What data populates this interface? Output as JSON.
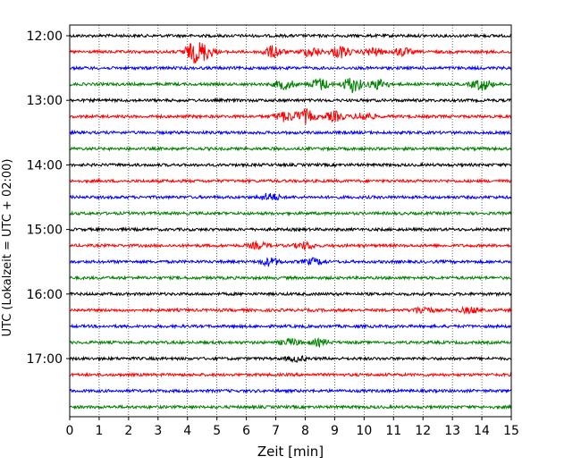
{
  "chart_data": {
    "type": "line",
    "title": "",
    "xlabel": "Zeit  [min]",
    "ylabel": "UTC (Lokalzeit = UTC + 02:00)",
    "xlim": [
      0,
      15
    ],
    "x_ticks": [
      "0",
      "1",
      "2",
      "3",
      "4",
      "5",
      "6",
      "7",
      "8",
      "9",
      "10",
      "11",
      "12",
      "13",
      "14",
      "15"
    ],
    "y_ticks": [
      "12:00",
      "13:00",
      "14:00",
      "15:00",
      "16:00",
      "17:00"
    ],
    "grid": "vertical-dotted",
    "trace_colors": [
      "#000000",
      "#ff0000",
      "#0000ff",
      "#008000"
    ],
    "traces": [
      {
        "time": "12:00",
        "color": "#000000",
        "events": []
      },
      {
        "time": "12:15",
        "color": "#ff0000",
        "events": [
          [
            4.2,
            0.9
          ],
          [
            4.6,
            0.7
          ],
          [
            6.9,
            0.6
          ],
          [
            8.2,
            0.5
          ],
          [
            9.2,
            0.6
          ],
          [
            10.3,
            0.4
          ],
          [
            11.3,
            0.4
          ]
        ]
      },
      {
        "time": "12:30",
        "color": "#0000ff",
        "events": []
      },
      {
        "time": "12:45",
        "color": "#008000",
        "events": [
          [
            7.3,
            0.5
          ],
          [
            8.5,
            0.6
          ],
          [
            9.6,
            0.8
          ],
          [
            10.5,
            0.5
          ],
          [
            14.0,
            0.6
          ]
        ]
      },
      {
        "time": "13:00",
        "color": "#000000",
        "events": []
      },
      {
        "time": "13:15",
        "color": "#ff0000",
        "events": [
          [
            7.3,
            0.5
          ],
          [
            8.0,
            0.7
          ],
          [
            9.0,
            0.5
          ],
          [
            10.0,
            0.4
          ]
        ]
      },
      {
        "time": "13:30",
        "color": "#0000ff",
        "events": []
      },
      {
        "time": "13:45",
        "color": "#008000",
        "events": []
      },
      {
        "time": "14:00",
        "color": "#000000",
        "events": []
      },
      {
        "time": "14:15",
        "color": "#ff0000",
        "events": []
      },
      {
        "time": "14:30",
        "color": "#0000ff",
        "events": [
          [
            6.8,
            0.4
          ]
        ]
      },
      {
        "time": "14:45",
        "color": "#008000",
        "events": []
      },
      {
        "time": "15:00",
        "color": "#000000",
        "events": []
      },
      {
        "time": "15:15",
        "color": "#ff0000",
        "events": [
          [
            6.4,
            0.3
          ],
          [
            8.0,
            0.35
          ]
        ]
      },
      {
        "time": "15:30",
        "color": "#0000ff",
        "events": [
          [
            6.8,
            0.4
          ],
          [
            8.3,
            0.3
          ]
        ]
      },
      {
        "time": "15:45",
        "color": "#008000",
        "events": []
      },
      {
        "time": "16:00",
        "color": "#000000",
        "events": []
      },
      {
        "time": "16:15",
        "color": "#ff0000",
        "events": [
          [
            12.0,
            0.35
          ],
          [
            13.6,
            0.3
          ]
        ]
      },
      {
        "time": "16:30",
        "color": "#0000ff",
        "events": []
      },
      {
        "time": "16:45",
        "color": "#008000",
        "events": [
          [
            7.5,
            0.35
          ],
          [
            8.5,
            0.3
          ]
        ]
      },
      {
        "time": "17:00",
        "color": "#000000",
        "events": [
          [
            7.7,
            0.25
          ]
        ]
      },
      {
        "time": "17:15",
        "color": "#ff0000",
        "events": []
      },
      {
        "time": "17:30",
        "color": "#0000ff",
        "events": []
      },
      {
        "time": "17:45",
        "color": "#008000",
        "events": []
      }
    ]
  }
}
